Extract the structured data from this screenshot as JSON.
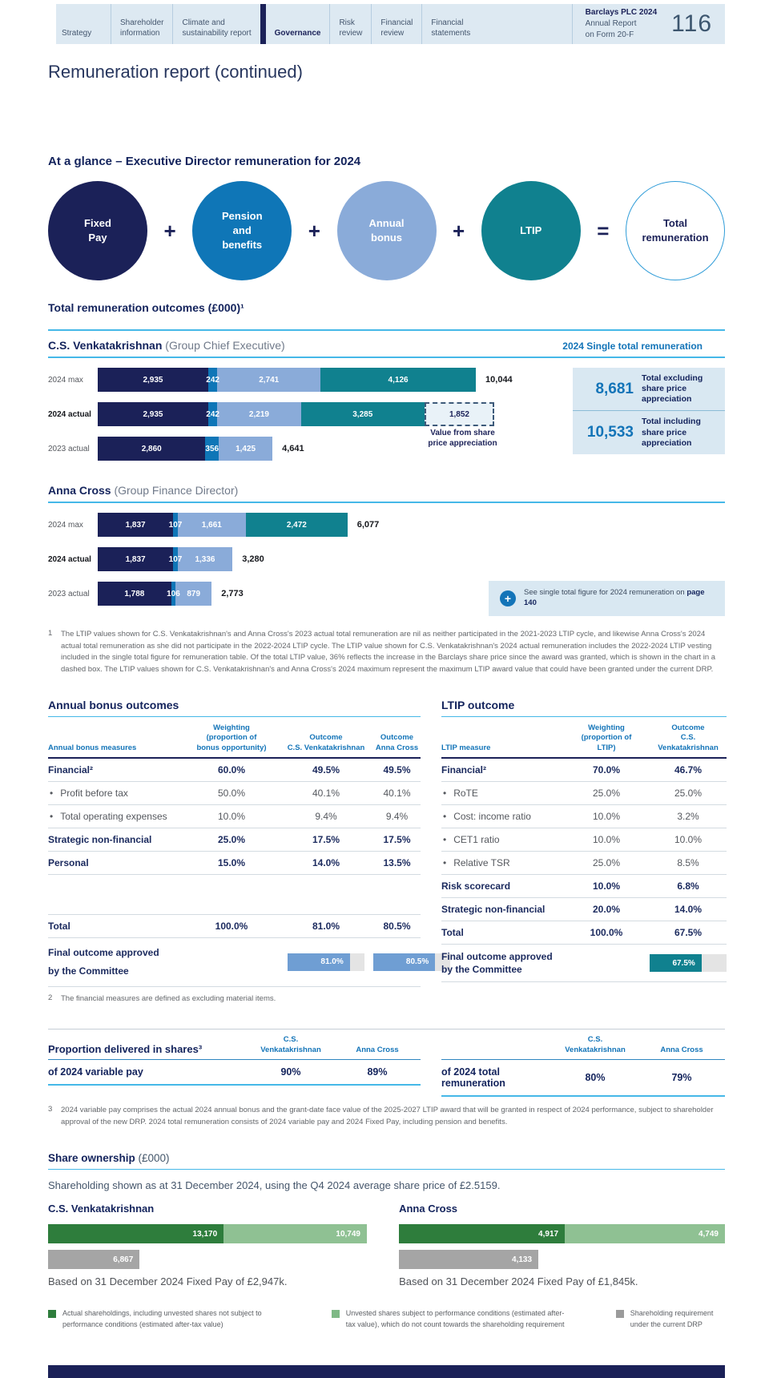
{
  "palette": {
    "navy": "#1b2158",
    "blue": "#0f76b7",
    "light_blue": "#8aabd9",
    "teal": "#10818f",
    "accent_rule": "#45b8e8",
    "table_header_blue": "#1374b8",
    "panel_bg": "#d9e8f2",
    "bar_blue": "#6f9ed3",
    "green_dark": "#2e7d3c",
    "green_light": "#8fc193",
    "grey_bar": "#a5a5a5",
    "nav_bg": "#dde9f2"
  },
  "nav": {
    "tabs": [
      {
        "label": "Strategy"
      },
      {
        "label": "Shareholder\ninformation"
      },
      {
        "label": "Climate and\nsustainability report"
      },
      {
        "label": "Governance",
        "active": true
      },
      {
        "label": "Risk\nreview"
      },
      {
        "label": "Financial\nreview"
      },
      {
        "label": "Financial\nstatements"
      }
    ],
    "report_title": {
      "line1": "Barclays PLC 2024",
      "line2": "Annual Report",
      "line3": "on Form 20-F"
    },
    "page_number": "116"
  },
  "page_title": "Remuneration report (continued)",
  "at_a_glance": {
    "heading": "At a glance – Executive Director remuneration for 2024",
    "circles": [
      {
        "label": "Fixed\nPay",
        "color": "#1b2158",
        "text_color": "#ffffff"
      },
      {
        "label": "Pension\nand\nbenefits",
        "color": "#0f76b7",
        "text_color": "#ffffff"
      },
      {
        "label": "Annual\nbonus",
        "color": "#8aabd9",
        "text_color": "#ffffff"
      },
      {
        "label": "LTIP",
        "color": "#10818f",
        "text_color": "#ffffff"
      },
      {
        "label": "Total\nremuneration",
        "outline": true
      }
    ],
    "operators": [
      "+",
      "+",
      "+",
      "="
    ]
  },
  "outcomes": {
    "heading": "Total remuneration outcomes (£000)¹",
    "single_total_label": "2024 Single total remuneration",
    "venkatakrishnan": {
      "name": "C.S. Venkatakrishnan",
      "role": " (Group Chief Executive)",
      "annotation": "Value from share\nprice appreciation",
      "panel": [
        {
          "value": "8,681",
          "label": "Total excluding\nshare price\nappreciation"
        },
        {
          "value": "10,533",
          "label": "Total including\nshare price\nappreciation"
        }
      ]
    },
    "cross": {
      "name": "Anna Cross",
      "role": " (Group Finance Director)",
      "callout": {
        "icon": "+",
        "text": "See single total figure for 2024 remuneration on ",
        "link": "page 140"
      }
    },
    "footnote_num": "1",
    "footnote_text": "The LTIP values shown for C.S. Venkatakrishnan's and Anna Cross's 2023 actual total remuneration are nil as neither participated in the 2021-2023 LTIP cycle, and likewise Anna Cross's 2024 actual total remuneration as she did not participate in the 2022-2024 LTIP cycle. The LTIP value shown for C.S. Venkatakrishnan's 2024 actual remuneration includes the 2022-2024 LTIP vesting included in the single total figure for remuneration table. Of the total LTIP value, 36% reflects the increase in the Barclays share price since the award was granted, which is shown in the chart in a dashed box. The LTIP values shown for C.S. Venkatakrishnan's and Anna Cross's 2024 maximum represent the maximum LTIP award value that could have been granted under the current DRP."
  },
  "bonus_table": {
    "heading": "Annual bonus outcomes",
    "headers": [
      "Annual bonus measures",
      "Weighting\n(proportion of\nbonus opportunity)",
      "Outcome\nC.S. Venkatakrishnan",
      "Outcome\nAnna Cross"
    ],
    "rows": [
      {
        "label": "Financial²",
        "style": "bold",
        "cells": [
          "60.0%",
          "49.5%",
          "49.5%"
        ]
      },
      {
        "label": "Profit before tax",
        "style": "bullet",
        "cells": [
          "50.0%",
          "40.1%",
          "40.1%"
        ]
      },
      {
        "label": "Total operating expenses",
        "style": "bullet",
        "cells": [
          "10.0%",
          "9.4%",
          "9.4%"
        ]
      },
      {
        "label": "Strategic non-financial",
        "style": "bold",
        "cells": [
          "25.0%",
          "17.5%",
          "17.5%"
        ]
      },
      {
        "label": "Personal",
        "style": "bold",
        "cells": [
          "15.0%",
          "14.0%",
          "13.5%"
        ]
      },
      {
        "label": "",
        "style": "spacer",
        "cells": []
      },
      {
        "label": "Total",
        "style": "bold",
        "cells": [
          "100.0%",
          "81.0%",
          "80.5%"
        ]
      }
    ],
    "final_label": "Final outcome approved\nby the Committee",
    "final_bars": [
      {
        "pct": 81,
        "label": "81.0%"
      },
      {
        "pct": 80.5,
        "label": "80.5%"
      }
    ],
    "footnote_num": "2",
    "footnote_text": "The financial measures are defined as excluding material items."
  },
  "ltip_table": {
    "heading": "LTIP outcome",
    "headers": [
      "LTIP measure",
      "Weighting\n(proportion of\nLTIP)",
      "Outcome\nC.S. Venkatakrishnan"
    ],
    "rows": [
      {
        "label": "Financial²",
        "style": "bold",
        "cells": [
          "70.0%",
          "46.7%"
        ]
      },
      {
        "label": "RoTE",
        "style": "bullet",
        "cells": [
          "25.0%",
          "25.0%"
        ]
      },
      {
        "label": "Cost: income ratio",
        "style": "bullet",
        "cells": [
          "10.0%",
          "3.2%"
        ]
      },
      {
        "label": "CET1 ratio",
        "style": "bullet",
        "cells": [
          "10.0%",
          "10.0%"
        ]
      },
      {
        "label": "Relative TSR",
        "style": "bullet",
        "cells": [
          "25.0%",
          "8.5%"
        ]
      },
      {
        "label": "Risk scorecard",
        "style": "bold",
        "cells": [
          "10.0%",
          "6.8%"
        ]
      },
      {
        "label": "Strategic non-financial",
        "style": "bold",
        "cells": [
          "20.0%",
          "14.0%"
        ]
      },
      {
        "label": "Total",
        "style": "bold",
        "cells": [
          "100.0%",
          "67.5%"
        ]
      }
    ],
    "final_label": "Final outcome approved\nby the Committee",
    "final_bar": {
      "pct": 67.5,
      "label": "67.5%"
    }
  },
  "proportion": {
    "heading": "Proportion delivered in shares³",
    "col1": "C.S.\nVenkatakrishnan",
    "col2": "Anna Cross",
    "left_row_label": "of 2024 variable pay",
    "left_values": [
      "90%",
      "89%"
    ],
    "right_row_label": "of 2024 total remuneration",
    "right_values": [
      "80%",
      "79%"
    ],
    "footnote_num": "3",
    "footnote_text": "2024 variable pay comprises the actual 2024 annual bonus and the grant-date face value of the 2025-2027 LTIP award that will be granted in respect of 2024 performance, subject to shareholder approval of the new DRP. 2024 total remuneration consists of 2024 variable pay and 2024 Fixed Pay, including pension and benefits."
  },
  "share_ownership": {
    "heading": "Share ownership",
    "heading_unit": " (£000)",
    "intro": "Shareholding shown as at 31 December 2024, using the Q4 2024 average share price of £2.5159.",
    "venkatakrishnan": {
      "name": "C.S. Venkatakrishnan",
      "caption": "Based on 31 December 2024 Fixed Pay of £2,947k."
    },
    "cross": {
      "name": "Anna Cross",
      "caption": "Based on 31 December 2024 Fixed Pay of £1,845k."
    },
    "legend": [
      {
        "color": "#2e7d3c",
        "text": "Actual shareholdings, including unvested shares not subject to performance conditions (estimated after-tax value)"
      },
      {
        "color": "#7fb986",
        "text": "Unvested shares subject to performance conditions (estimated after-tax value), which do not count towards the shareholding requirement"
      },
      {
        "color": "#9b9b9b",
        "text": "Shareholding requirement under the current DRP"
      }
    ]
  },
  "chart_data": [
    {
      "id": "ceo_remuneration",
      "type": "stacked_bar",
      "title": "C.S. Venkatakrishnan (Group Chief Executive) total remuneration outcomes",
      "unit": "£000",
      "series_names": [
        "Fixed Pay",
        "Pension and benefits",
        "Annual bonus",
        "LTIP"
      ],
      "segment_colors": [
        "#1b2158",
        "#0f76b7",
        "#8aabd9",
        "#10818f"
      ],
      "rows": [
        {
          "label": "2024 max",
          "values": [
            2935,
            242,
            2741,
            4126
          ],
          "value_labels": [
            "2,935",
            "242",
            "2,741",
            "4,126"
          ],
          "total": "10,044"
        },
        {
          "label": "2024 actual",
          "bold": true,
          "values": [
            2935,
            242,
            2219,
            3285
          ],
          "value_labels": [
            "2,935",
            "242",
            "2,219",
            "3,285"
          ],
          "dashed": {
            "value": 1852,
            "label": "1,852",
            "meaning": "Value from share price appreciation"
          }
        },
        {
          "label": "2023 actual",
          "values": [
            2860,
            356,
            1425
          ],
          "value_labels": [
            "2,860",
            "356",
            "1,425"
          ],
          "total": "4,641"
        }
      ]
    },
    {
      "id": "cfo_remuneration",
      "type": "stacked_bar",
      "title": "Anna Cross (Group Finance Director) total remuneration outcomes",
      "unit": "£000",
      "series_names": [
        "Fixed Pay",
        "Pension and benefits",
        "Annual bonus",
        "LTIP"
      ],
      "segment_colors": [
        "#1b2158",
        "#0f76b7",
        "#8aabd9",
        "#10818f"
      ],
      "rows": [
        {
          "label": "2024 max",
          "values": [
            1837,
            107,
            1661,
            2472
          ],
          "value_labels": [
            "1,837",
            "107",
            "1,661",
            "2,472"
          ],
          "total": "6,077"
        },
        {
          "label": "2024 actual",
          "bold": true,
          "values": [
            1837,
            107,
            1336
          ],
          "value_labels": [
            "1,837",
            "107",
            "1,336"
          ],
          "total": "3,280"
        },
        {
          "label": "2023 actual",
          "values": [
            1788,
            106,
            879
          ],
          "value_labels": [
            "1,788",
            "106",
            "879"
          ],
          "total": "2,773"
        }
      ]
    },
    {
      "id": "ceo_share_ownership",
      "type": "stacked_bar",
      "title": "C.S. Venkatakrishnan share ownership",
      "unit": "£000",
      "rows": [
        {
          "values": [
            13170,
            10749
          ],
          "value_labels": [
            "13,170",
            "10,749"
          ],
          "colors": [
            "#2e7d3c",
            "#8fc193"
          ]
        },
        {
          "values": [
            6867
          ],
          "value_labels": [
            "6,867"
          ],
          "colors": [
            "#a5a5a5"
          ]
        }
      ]
    },
    {
      "id": "cfo_share_ownership",
      "type": "stacked_bar",
      "title": "Anna Cross share ownership",
      "unit": "£000",
      "rows": [
        {
          "values": [
            4917,
            4749
          ],
          "value_labels": [
            "4,917",
            "4,749"
          ],
          "colors": [
            "#2e7d3c",
            "#8fc193"
          ]
        },
        {
          "values": [
            4133
          ],
          "value_labels": [
            "4,133"
          ],
          "colors": [
            "#a5a5a5"
          ]
        }
      ]
    }
  ]
}
